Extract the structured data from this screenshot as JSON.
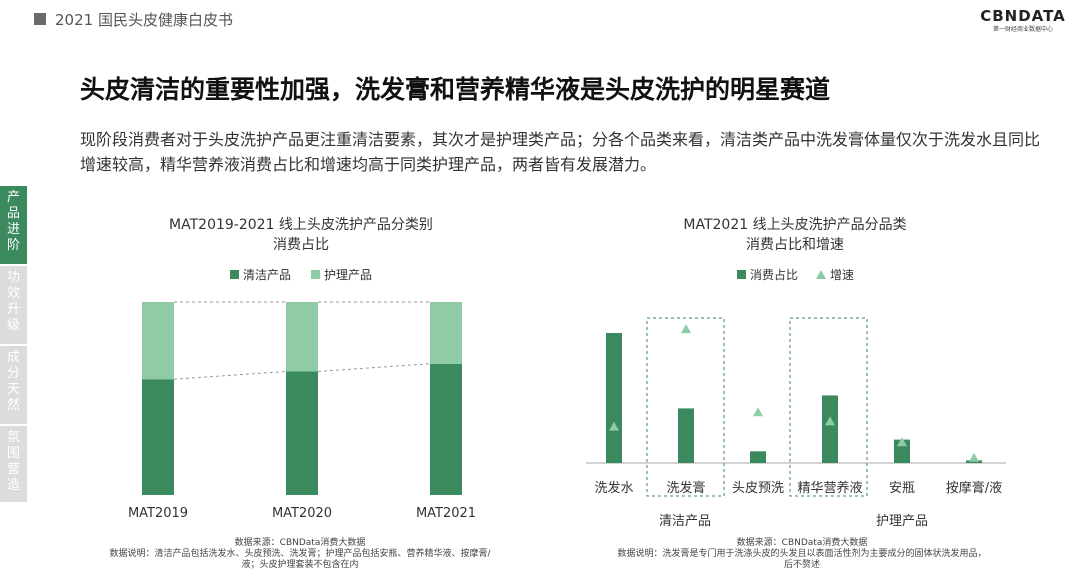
{
  "header": {
    "title": "2021 国民头皮健康白皮书"
  },
  "logo": {
    "text": "CBNDATA",
    "subtitle": "第一财经商业数据中心"
  },
  "main_title": "头皮清洁的重要性加强，洗发膏和营养精华液是头皮洗护的明星赛道",
  "description": "现阶段消费者对于头皮洗护产品更注重清洁要素，其次才是护理类产品；分各个品类来看，清洁类产品中洗发膏体量仅次于洗发水且同比增速较高，精华营养液消费占比和增速均高于同类护理产品，两者皆有发展潜力。",
  "sidebar": {
    "items": [
      {
        "label": "产品进阶",
        "active": true
      },
      {
        "label": "功效升级",
        "active": false
      },
      {
        "label": "成分天然",
        "active": false
      },
      {
        "label": "氛围营造",
        "active": false
      }
    ]
  },
  "colors": {
    "dark_green": "#3b8a5e",
    "light_green": "#8fcca5",
    "sidebar_active": "#3b8a5e",
    "sidebar_inactive": "#dcdcdc"
  },
  "chart_data": [
    {
      "type": "bar",
      "stacked": true,
      "title_line1": "MAT2019-2021 线上头皮洗护产品分类别",
      "title_line2": "消费占比",
      "categories": [
        "MAT2019",
        "MAT2020",
        "MAT2021"
      ],
      "series": [
        {
          "name": "清洁产品",
          "values": [
            60,
            64,
            68
          ]
        },
        {
          "name": "护理产品",
          "values": [
            40,
            36,
            32
          ]
        }
      ],
      "ylim": [
        0,
        100
      ],
      "note_source": "数据来源：CBNData消费大数据",
      "note_line1": "数据说明：清洁产品包括洗发水、头皮预洗、洗发膏；护理产品包括安瓶、营养精华液、按摩膏/",
      "note_line2": "液；头皮护理套装不包含在内"
    },
    {
      "type": "bar+scatter",
      "title_line1": "MAT2021 线上头皮洗护产品分品类",
      "title_line2": "消费占比和增速",
      "categories": [
        "洗发水",
        "洗发膏",
        "头皮预洗",
        "精华营养液",
        "安瓶",
        "按摩膏/液"
      ],
      "groups": [
        {
          "name": "清洁产品",
          "highlight": "洗发膏"
        },
        {
          "name": "护理产品",
          "highlight": "精华营养液"
        }
      ],
      "series": [
        {
          "name": "消费占比",
          "values": [
            100,
            42,
            9,
            52,
            18,
            2
          ]
        },
        {
          "name": "增速",
          "values": [
            28,
            103,
            39,
            32,
            16,
            4
          ]
        }
      ],
      "ylim": [
        0,
        110
      ],
      "note_source": "数据来源：CBNData消费大数据",
      "note_line1": "数据说明：洗发膏是专门用于洗涤头皮的头发且以表面活性剂为主要成分的固体状洗发用品，",
      "note_line2": "后不赘述"
    }
  ]
}
